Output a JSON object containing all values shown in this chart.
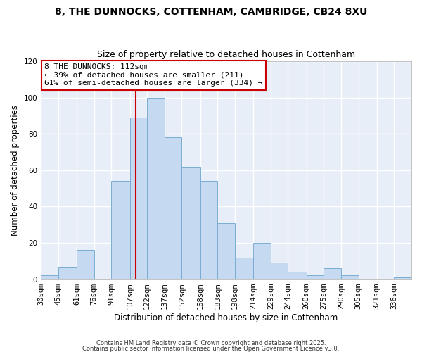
{
  "title": "8, THE DUNNOCKS, COTTENHAM, CAMBRIDGE, CB24 8XU",
  "subtitle": "Size of property relative to detached houses in Cottenham",
  "xlabel": "Distribution of detached houses by size in Cottenham",
  "ylabel": "Number of detached properties",
  "bar_color": "#c5daf0",
  "bar_edge_color": "#7aadd4",
  "background_color": "#ffffff",
  "plot_bg_color": "#e8eef8",
  "grid_color": "#ffffff",
  "bins": [
    "30sqm",
    "45sqm",
    "61sqm",
    "76sqm",
    "91sqm",
    "107sqm",
    "122sqm",
    "137sqm",
    "152sqm",
    "168sqm",
    "183sqm",
    "198sqm",
    "214sqm",
    "229sqm",
    "244sqm",
    "260sqm",
    "275sqm",
    "290sqm",
    "305sqm",
    "321sqm",
    "336sqm"
  ],
  "values": [
    2,
    7,
    16,
    0,
    54,
    89,
    100,
    78,
    62,
    54,
    31,
    12,
    20,
    9,
    4,
    2,
    6,
    2,
    0,
    0,
    1
  ],
  "vline_x": 112,
  "vline_color": "#cc0000",
  "annotation_title": "8 THE DUNNOCKS: 112sqm",
  "annotation_line1": "← 39% of detached houses are smaller (211)",
  "annotation_line2": "61% of semi-detached houses are larger (334) →",
  "annotation_box_color": "#ffffff",
  "annotation_box_edge_color": "#cc0000",
  "ylim": [
    0,
    120
  ],
  "yticks": [
    0,
    20,
    40,
    60,
    80,
    100,
    120
  ],
  "footer1": "Contains HM Land Registry data © Crown copyright and database right 2025.",
  "footer2": "Contains public sector information licensed under the Open Government Licence v3.0.",
  "bin_edges": [
    30,
    45,
    61,
    76,
    91,
    107,
    122,
    137,
    152,
    168,
    183,
    198,
    214,
    229,
    244,
    260,
    275,
    290,
    305,
    321,
    336
  ],
  "title_fontsize": 10,
  "subtitle_fontsize": 9,
  "axis_label_fontsize": 8.5,
  "tick_fontsize": 7.5
}
